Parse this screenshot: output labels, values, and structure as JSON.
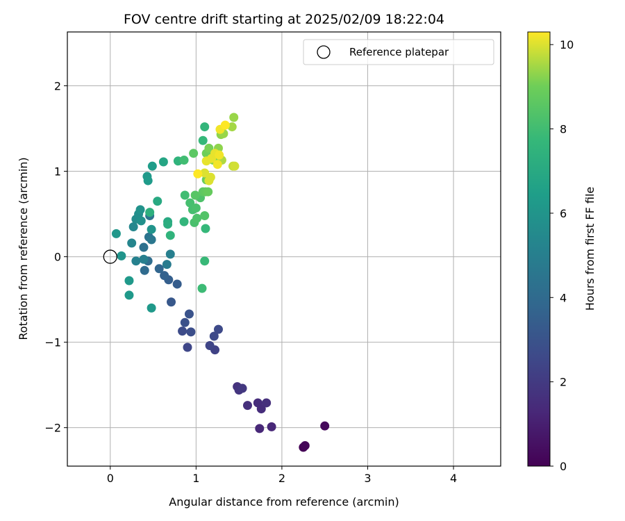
{
  "chart_data": {
    "type": "scatter",
    "title": "FOV centre drift starting at 2025/02/09 18:22:04",
    "xlabel": "Angular distance from reference (arcmin)",
    "ylabel": "Rotation from reference (arcmin)",
    "xlim": [
      -0.5,
      4.55
    ],
    "ylim": [
      -2.45,
      2.63
    ],
    "xticks": [
      0,
      1,
      2,
      3,
      4
    ],
    "xtick_labels": [
      "0",
      "1",
      "2",
      "3",
      "4"
    ],
    "yticks": [
      -2,
      -1,
      0,
      1,
      2
    ],
    "ytick_labels": [
      "−2",
      "−1",
      "0",
      "1",
      "2"
    ],
    "grid": true,
    "legend": {
      "position": "top-right",
      "entries": [
        "Reference platepar"
      ]
    },
    "reference_point": {
      "x": 0,
      "y": 0,
      "label": "Reference platepar"
    },
    "colorbar": {
      "label": "Hours from first FF file",
      "range": [
        0,
        10.3
      ],
      "ticks": [
        0,
        2,
        4,
        6,
        8,
        10
      ],
      "colormap": "viridis"
    },
    "points": [
      {
        "x": 2.25,
        "y": -2.23,
        "h": 0.05
      },
      {
        "x": 2.27,
        "y": -2.21,
        "h": 0.15
      },
      {
        "x": 2.5,
        "y": -1.98,
        "h": 0.25
      },
      {
        "x": 1.88,
        "y": -1.99,
        "h": 1.3
      },
      {
        "x": 1.74,
        "y": -2.01,
        "h": 1.3
      },
      {
        "x": 1.72,
        "y": -1.71,
        "h": 1.5
      },
      {
        "x": 1.76,
        "y": -1.78,
        "h": 1.5
      },
      {
        "x": 1.82,
        "y": -1.71,
        "h": 1.6
      },
      {
        "x": 1.6,
        "y": -1.74,
        "h": 1.6
      },
      {
        "x": 1.48,
        "y": -1.52,
        "h": 1.7
      },
      {
        "x": 1.5,
        "y": -1.56,
        "h": 1.8
      },
      {
        "x": 1.54,
        "y": -1.54,
        "h": 1.9
      },
      {
        "x": 1.22,
        "y": -1.09,
        "h": 2.3
      },
      {
        "x": 1.16,
        "y": -1.04,
        "h": 2.4
      },
      {
        "x": 0.9,
        "y": -1.06,
        "h": 2.5
      },
      {
        "x": 1.21,
        "y": -0.93,
        "h": 2.6
      },
      {
        "x": 1.26,
        "y": -0.85,
        "h": 2.6
      },
      {
        "x": 0.84,
        "y": -0.87,
        "h": 2.7
      },
      {
        "x": 0.94,
        "y": -0.88,
        "h": 2.8
      },
      {
        "x": 0.87,
        "y": -0.77,
        "h": 2.9
      },
      {
        "x": 0.92,
        "y": -0.67,
        "h": 3.0
      },
      {
        "x": 0.71,
        "y": -0.53,
        "h": 3.2
      },
      {
        "x": 0.78,
        "y": -0.32,
        "h": 3.4
      },
      {
        "x": 0.68,
        "y": -0.27,
        "h": 3.5
      },
      {
        "x": 0.63,
        "y": -0.22,
        "h": 3.6
      },
      {
        "x": 0.57,
        "y": -0.14,
        "h": 3.8
      },
      {
        "x": 0.4,
        "y": -0.16,
        "h": 4.0
      },
      {
        "x": 0.44,
        "y": -0.05,
        "h": 4.1
      },
      {
        "x": 0.39,
        "y": 0.11,
        "h": 4.3
      },
      {
        "x": 0.45,
        "y": 0.23,
        "h": 4.4
      },
      {
        "x": 0.46,
        "y": 0.48,
        "h": 4.5
      },
      {
        "x": 0.48,
        "y": 0.2,
        "h": 4.6
      },
      {
        "x": 0.66,
        "y": -0.09,
        "h": 4.8
      },
      {
        "x": 0.7,
        "y": 0.03,
        "h": 5.0
      },
      {
        "x": 0.39,
        "y": -0.03,
        "h": 5.0
      },
      {
        "x": 0.3,
        "y": -0.05,
        "h": 5.1
      },
      {
        "x": 0.25,
        "y": 0.16,
        "h": 5.3
      },
      {
        "x": 0.27,
        "y": 0.35,
        "h": 5.4
      },
      {
        "x": 0.3,
        "y": 0.44,
        "h": 5.6
      },
      {
        "x": 0.33,
        "y": 0.5,
        "h": 5.7
      },
      {
        "x": 0.36,
        "y": 0.42,
        "h": 5.8
      },
      {
        "x": 0.35,
        "y": 0.55,
        "h": 5.9
      },
      {
        "x": 0.48,
        "y": 0.32,
        "h": 6.0
      },
      {
        "x": 0.13,
        "y": 0.01,
        "h": 6.0
      },
      {
        "x": 0.07,
        "y": 0.27,
        "h": 6.1
      },
      {
        "x": 0.22,
        "y": -0.28,
        "h": 6.2
      },
      {
        "x": 0.22,
        "y": -0.45,
        "h": 6.2
      },
      {
        "x": 0.48,
        "y": -0.6,
        "h": 6.2
      },
      {
        "x": 0.43,
        "y": 0.94,
        "h": 6.2
      },
      {
        "x": 0.44,
        "y": 0.89,
        "h": 6.3
      },
      {
        "x": 0.49,
        "y": 1.06,
        "h": 6.4
      },
      {
        "x": 0.62,
        "y": 1.11,
        "h": 6.8
      },
      {
        "x": 0.55,
        "y": 0.65,
        "h": 7.0
      },
      {
        "x": 0.67,
        "y": 0.41,
        "h": 7.0
      },
      {
        "x": 0.67,
        "y": 0.38,
        "h": 7.2
      },
      {
        "x": 0.46,
        "y": 0.52,
        "h": 7.3
      },
      {
        "x": 0.7,
        "y": 0.25,
        "h": 7.5
      },
      {
        "x": 0.79,
        "y": 1.12,
        "h": 7.5
      },
      {
        "x": 0.86,
        "y": 0.41,
        "h": 7.6
      },
      {
        "x": 1.1,
        "y": 1.52,
        "h": 7.6
      },
      {
        "x": 1.08,
        "y": 1.36,
        "h": 7.7
      },
      {
        "x": 1.11,
        "y": 0.33,
        "h": 7.7
      },
      {
        "x": 1.1,
        "y": -0.05,
        "h": 7.8
      },
      {
        "x": 1.07,
        "y": -0.37,
        "h": 7.9
      },
      {
        "x": 0.86,
        "y": 1.13,
        "h": 8.0
      },
      {
        "x": 0.87,
        "y": 0.72,
        "h": 8.0
      },
      {
        "x": 0.93,
        "y": 0.63,
        "h": 8.1
      },
      {
        "x": 0.96,
        "y": 0.55,
        "h": 8.1
      },
      {
        "x": 0.98,
        "y": 0.4,
        "h": 8.2
      },
      {
        "x": 1.0,
        "y": 0.57,
        "h": 8.2
      },
      {
        "x": 1.01,
        "y": 0.45,
        "h": 8.3
      },
      {
        "x": 1.05,
        "y": 0.69,
        "h": 8.3
      },
      {
        "x": 1.1,
        "y": 0.48,
        "h": 8.4
      },
      {
        "x": 0.99,
        "y": 0.72,
        "h": 8.5
      },
      {
        "x": 0.97,
        "y": 1.21,
        "h": 8.6
      },
      {
        "x": 1.08,
        "y": 0.76,
        "h": 8.6
      },
      {
        "x": 1.11,
        "y": 0.76,
        "h": 8.7
      },
      {
        "x": 1.14,
        "y": 0.76,
        "h": 8.8
      },
      {
        "x": 1.12,
        "y": 0.9,
        "h": 8.9
      },
      {
        "x": 1.12,
        "y": 1.21,
        "h": 9.0
      },
      {
        "x": 1.15,
        "y": 1.27,
        "h": 9.1
      },
      {
        "x": 1.2,
        "y": 1.13,
        "h": 9.2
      },
      {
        "x": 1.26,
        "y": 1.27,
        "h": 9.3
      },
      {
        "x": 1.29,
        "y": 1.43,
        "h": 9.3
      },
      {
        "x": 1.32,
        "y": 1.44,
        "h": 9.4
      },
      {
        "x": 1.44,
        "y": 1.63,
        "h": 9.4
      },
      {
        "x": 1.42,
        "y": 1.52,
        "h": 9.5
      },
      {
        "x": 1.3,
        "y": 1.13,
        "h": 9.6
      },
      {
        "x": 1.43,
        "y": 1.06,
        "h": 9.8
      },
      {
        "x": 1.45,
        "y": 1.06,
        "h": 9.9
      },
      {
        "x": 1.1,
        "y": 0.98,
        "h": 10.0
      },
      {
        "x": 1.15,
        "y": 0.89,
        "h": 10.0
      },
      {
        "x": 1.17,
        "y": 0.93,
        "h": 10.0
      },
      {
        "x": 1.12,
        "y": 1.12,
        "h": 10.1
      },
      {
        "x": 1.18,
        "y": 1.15,
        "h": 10.1
      },
      {
        "x": 1.22,
        "y": 1.21,
        "h": 10.1
      },
      {
        "x": 1.27,
        "y": 1.19,
        "h": 10.2
      },
      {
        "x": 1.25,
        "y": 1.08,
        "h": 10.2
      },
      {
        "x": 1.28,
        "y": 1.49,
        "h": 10.2
      },
      {
        "x": 1.34,
        "y": 1.54,
        "h": 10.3
      },
      {
        "x": 1.02,
        "y": 0.97,
        "h": 10.3
      }
    ]
  }
}
